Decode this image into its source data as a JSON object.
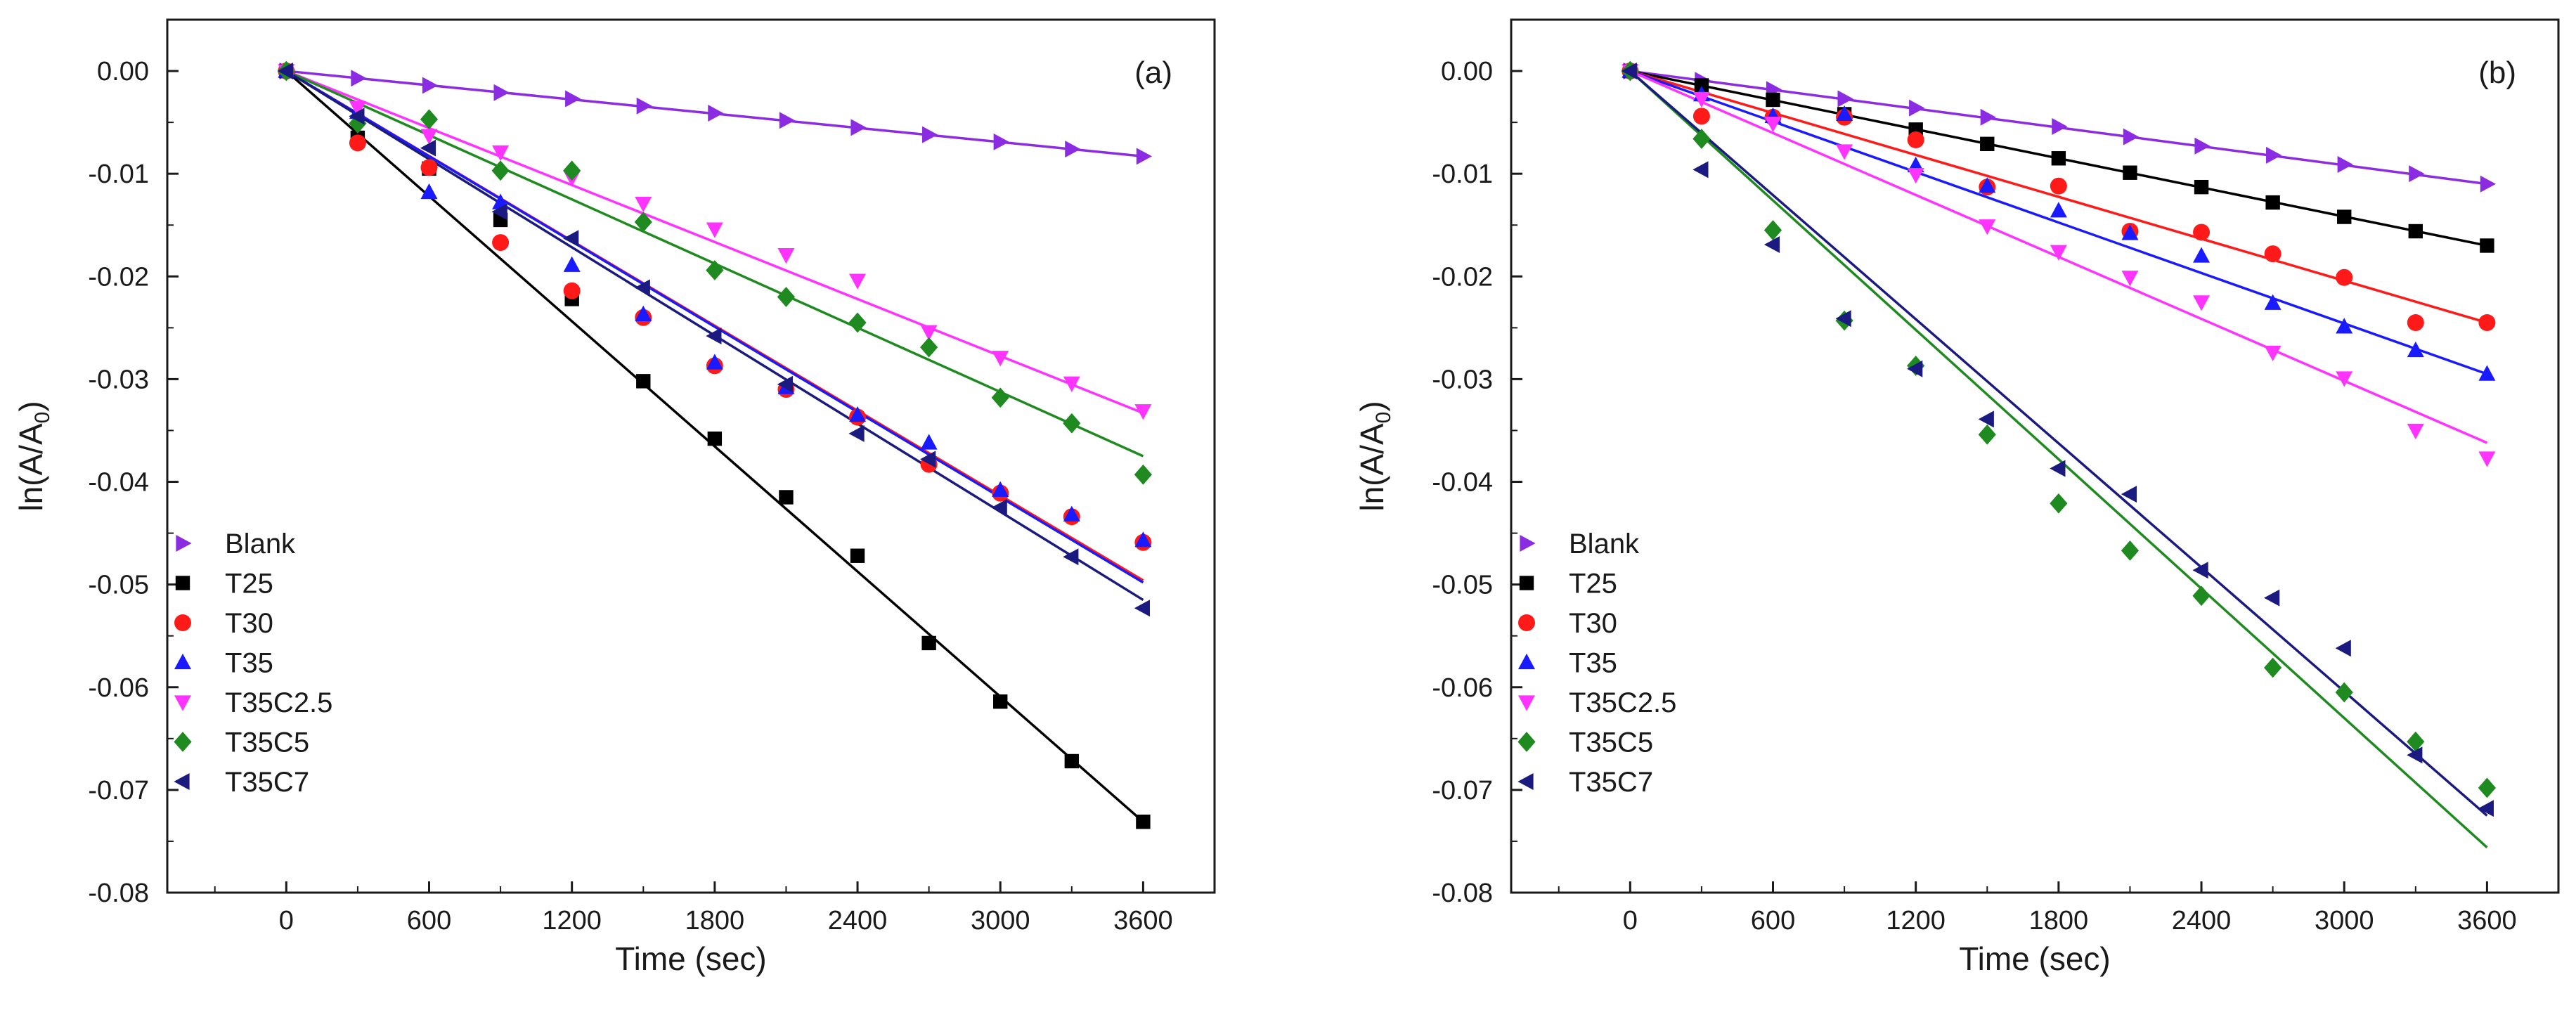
{
  "chart_data": [
    {
      "type": "scatter",
      "panel_label": "(a)",
      "xlabel": "Time (sec)",
      "ylabel": "ln(A/A",
      "ylabel_sub": "0",
      "ylabel_close": ")",
      "xlim": [
        -500,
        3900
      ],
      "ylim": [
        -0.08,
        0.005
      ],
      "xticks": [
        0,
        600,
        1200,
        1800,
        2400,
        3000,
        3600
      ],
      "yticks": [
        0.0,
        -0.01,
        -0.02,
        -0.03,
        -0.04,
        -0.05,
        -0.06,
        -0.07,
        -0.08
      ],
      "ytick_labels": [
        "0.00",
        "-0.01",
        "-0.02",
        "-0.03",
        "-0.04",
        "-0.05",
        "-0.06",
        "-0.07",
        "-0.08"
      ],
      "legend_position": "bottom-left",
      "x": [
        0,
        300,
        600,
        900,
        1200,
        1500,
        1800,
        2100,
        2400,
        2700,
        3000,
        3300,
        3600
      ],
      "series": [
        {
          "name": "Blank",
          "color": "#8b2be2",
          "marker": "triangle-right",
          "values": [
            0,
            -0.0007,
            -0.0014,
            -0.0021,
            -0.0027,
            -0.0034,
            -0.0041,
            -0.0048,
            -0.0055,
            -0.0062,
            -0.0069,
            -0.0076,
            -0.0083
          ],
          "fit": [
            0,
            -0.0083
          ]
        },
        {
          "name": "T25",
          "color": "#000000",
          "marker": "square",
          "values": [
            0,
            -0.0065,
            -0.0095,
            -0.0145,
            -0.0222,
            -0.0302,
            -0.0358,
            -0.0415,
            -0.0472,
            -0.0557,
            -0.0614,
            -0.0672,
            -0.0731
          ],
          "fit": [
            0,
            -0.0731
          ]
        },
        {
          "name": "T30",
          "color": "#ff1a1a",
          "marker": "circle",
          "values": [
            0,
            -0.007,
            -0.0094,
            -0.0167,
            -0.0214,
            -0.024,
            -0.0287,
            -0.031,
            -0.0337,
            -0.0383,
            -0.0411,
            -0.0434,
            -0.0459
          ],
          "fit": [
            0,
            -0.0496
          ]
        },
        {
          "name": "T35",
          "color": "#1a1aff",
          "marker": "triangle-up",
          "values": [
            0,
            -0.004,
            -0.0118,
            -0.0128,
            -0.0189,
            -0.0237,
            -0.0284,
            -0.0308,
            -0.0335,
            -0.0362,
            -0.0408,
            -0.0432,
            -0.0457
          ],
          "fit": [
            0,
            -0.0498
          ]
        },
        {
          "name": "T35C2.5",
          "color": "#ff33ff",
          "marker": "triangle-down",
          "values": [
            0,
            -0.0036,
            -0.0063,
            -0.0079,
            -0.0104,
            -0.0129,
            -0.0154,
            -0.0179,
            -0.0204,
            -0.0254,
            -0.0279,
            -0.0304,
            -0.0331
          ],
          "fit": [
            0,
            -0.0333
          ]
        },
        {
          "name": "T35C5",
          "color": "#1f8a1f",
          "marker": "diamond",
          "values": [
            0,
            -0.0051,
            -0.0047,
            -0.0097,
            -0.0097,
            -0.0147,
            -0.0194,
            -0.022,
            -0.0245,
            -0.0269,
            -0.0318,
            -0.0343,
            -0.0393
          ],
          "fit": [
            0,
            -0.0375
          ]
        },
        {
          "name": "T35C7",
          "color": "#1a1a80",
          "marker": "triangle-left",
          "values": [
            0,
            -0.0044,
            -0.0075,
            -0.0137,
            -0.0163,
            -0.0211,
            -0.0258,
            -0.0305,
            -0.0353,
            -0.0378,
            -0.0425,
            -0.0473,
            -0.0523
          ],
          "fit": [
            0,
            -0.0515
          ]
        }
      ],
      "legend": [
        "Blank",
        "T25",
        "T30",
        "T35",
        "T35C2.5",
        "T35C5",
        "T35C7"
      ]
    },
    {
      "type": "scatter",
      "panel_label": "(b)",
      "xlabel": "Time (sec)",
      "ylabel": "ln(A/A",
      "ylabel_sub": "0",
      "ylabel_close": ")",
      "xlim": [
        -500,
        3900
      ],
      "ylim": [
        -0.08,
        0.005
      ],
      "xticks": [
        0,
        600,
        1200,
        1800,
        2400,
        3000,
        3600
      ],
      "yticks": [
        0.0,
        -0.01,
        -0.02,
        -0.03,
        -0.04,
        -0.05,
        -0.06,
        -0.07,
        -0.08
      ],
      "ytick_labels": [
        "0.00",
        "-0.01",
        "-0.02",
        "-0.03",
        "-0.04",
        "-0.05",
        "-0.06",
        "-0.07",
        "-0.08"
      ],
      "legend_position": "bottom-left",
      "x": [
        0,
        300,
        600,
        900,
        1200,
        1500,
        1800,
        2100,
        2400,
        2700,
        3000,
        3300,
        3600
      ],
      "series": [
        {
          "name": "Blank",
          "color": "#8b2be2",
          "marker": "triangle-right",
          "values": [
            0,
            -0.0009,
            -0.0018,
            -0.0027,
            -0.0036,
            -0.0045,
            -0.0054,
            -0.0064,
            -0.0073,
            -0.0082,
            -0.0091,
            -0.01,
            -0.011
          ],
          "fit": [
            0,
            -0.011
          ]
        },
        {
          "name": "T25",
          "color": "#000000",
          "marker": "square",
          "values": [
            0,
            -0.0014,
            -0.0028,
            -0.0042,
            -0.0057,
            -0.0071,
            -0.0085,
            -0.0099,
            -0.0113,
            -0.0128,
            -0.0142,
            -0.0156,
            -0.017
          ],
          "fit": [
            0,
            -0.017
          ]
        },
        {
          "name": "T30",
          "color": "#ff1a1a",
          "marker": "circle",
          "values": [
            0,
            -0.0044,
            -0.0045,
            -0.0045,
            -0.0067,
            -0.0113,
            -0.0112,
            -0.0156,
            -0.0157,
            -0.0178,
            -0.0201,
            -0.0245,
            -0.0245
          ],
          "fit": [
            0,
            -0.0245
          ]
        },
        {
          "name": "T35",
          "color": "#1a1aff",
          "marker": "triangle-up",
          "values": [
            0,
            -0.0023,
            -0.0044,
            -0.0042,
            -0.0092,
            -0.0112,
            -0.0136,
            -0.0158,
            -0.018,
            -0.0226,
            -0.0249,
            -0.0272,
            -0.0295
          ],
          "fit": [
            0,
            -0.0295
          ]
        },
        {
          "name": "T35C2.5",
          "color": "#ff33ff",
          "marker": "triangle-down",
          "values": [
            0,
            -0.0027,
            -0.0051,
            -0.0078,
            -0.0101,
            -0.0151,
            -0.0176,
            -0.0201,
            -0.0225,
            -0.0274,
            -0.0299,
            -0.035,
            -0.0377
          ],
          "fit": [
            0,
            -0.0362
          ]
        },
        {
          "name": "T35C5",
          "color": "#1f8a1f",
          "marker": "diamond",
          "values": [
            0,
            -0.0066,
            -0.0155,
            -0.0243,
            -0.0287,
            -0.0354,
            -0.0421,
            -0.0467,
            -0.0511,
            -0.0581,
            -0.0605,
            -0.0653,
            -0.0698
          ],
          "fit": [
            0,
            -0.0756
          ]
        },
        {
          "name": "T35C7",
          "color": "#1a1a80",
          "marker": "triangle-left",
          "values": [
            0,
            -0.0096,
            -0.0169,
            -0.0241,
            -0.029,
            -0.0339,
            -0.0387,
            -0.0412,
            -0.0486,
            -0.0513,
            -0.0562,
            -0.0666,
            -0.0718
          ],
          "fit": [
            0,
            -0.0725
          ]
        }
      ],
      "legend": [
        "Blank",
        "T25",
        "T30",
        "T35",
        "T35C2.5",
        "T35C5",
        "T35C7"
      ]
    }
  ]
}
